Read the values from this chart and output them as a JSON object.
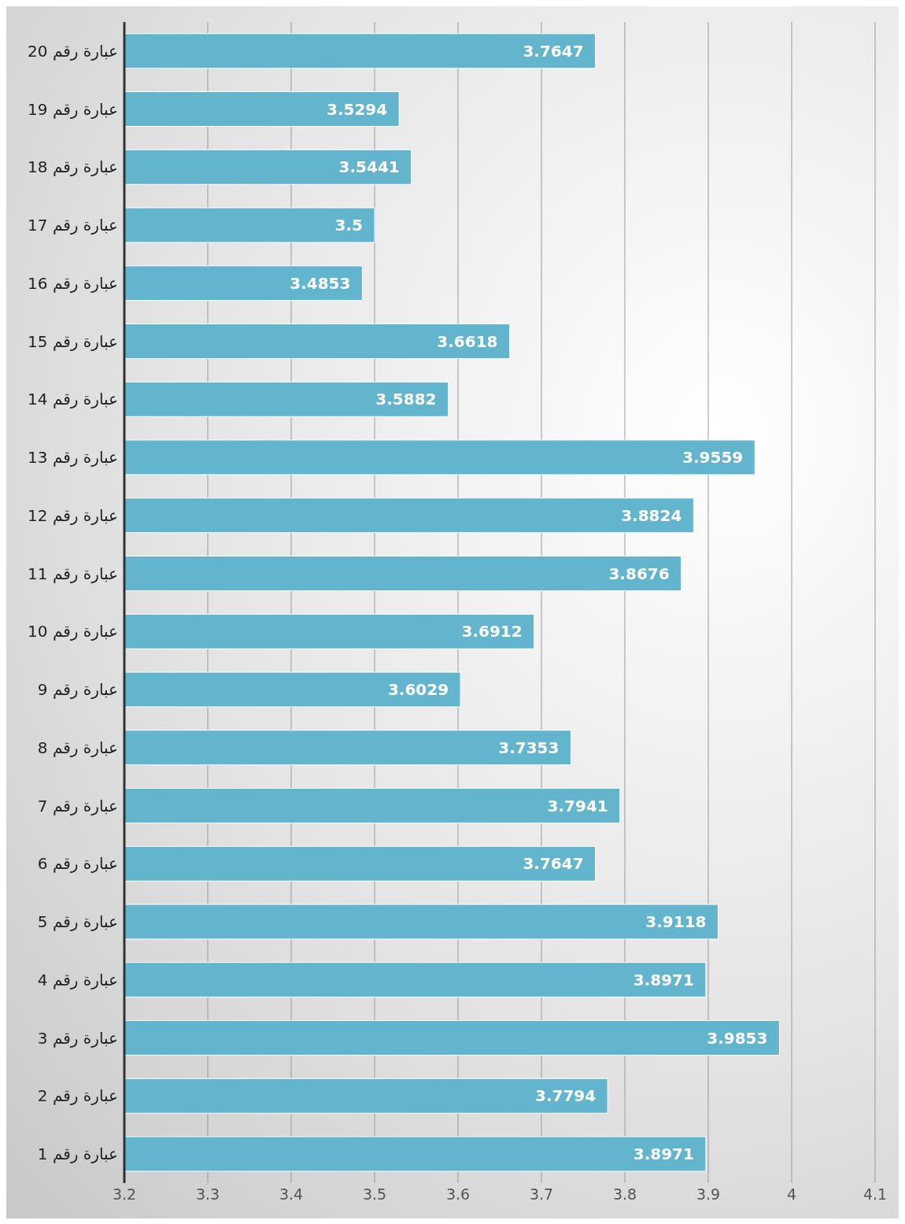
{
  "chart_data": {
    "type": "bar",
    "orientation": "horizontal",
    "categories": [
      "عبارة رقم 20",
      "عبارة رقم 19",
      "عبارة رقم 18",
      "عبارة رقم 17",
      "عبارة رقم 16",
      "عبارة رقم 15",
      "عبارة رقم 14",
      "عبارة رقم 13",
      "عبارة رقم 12",
      "عبارة رقم 11",
      "عبارة رقم 10",
      "عبارة رقم 9",
      "عبارة رقم 8",
      "عبارة رقم 7",
      "عبارة رقم 6",
      "عبارة رقم 5",
      "عبارة رقم 4",
      "عبارة رقم 3",
      "عبارة رقم 2",
      "عبارة رقم 1"
    ],
    "values": [
      3.7647,
      3.5294,
      3.5441,
      3.5,
      3.4853,
      3.6618,
      3.5882,
      3.9559,
      3.8824,
      3.8676,
      3.6912,
      3.6029,
      3.7353,
      3.7941,
      3.7647,
      3.9118,
      3.8971,
      3.9853,
      3.7794,
      3.8971
    ],
    "color": "#63b5cd",
    "xlim": [
      3.2,
      4.1
    ],
    "xticks": [
      3.2,
      3.3,
      3.4,
      3.5,
      3.6,
      3.7,
      3.8,
      3.9,
      4,
      4.1
    ],
    "grid": "x",
    "data_labels": true
  }
}
